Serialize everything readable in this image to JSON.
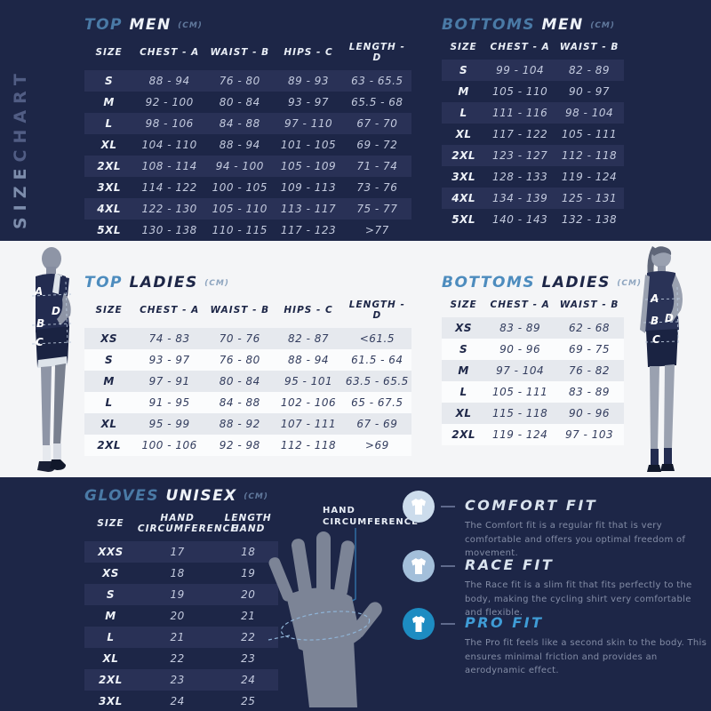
{
  "brand": {
    "vertical_title_part1": "SIZE",
    "vertical_title_part2": "CHART"
  },
  "colors": {
    "background": "#1d2647",
    "light_band": "#f4f5f7",
    "accent_blue": "#4d8cbe",
    "row_dark": "#293156",
    "row_light": "#e6e9ee",
    "pro_blue": "#2f96d0"
  },
  "tables": {
    "top_men": {
      "title": {
        "word1": "TOP",
        "word2": "MEN",
        "unit": "(CM)"
      },
      "headers": [
        "SIZE",
        "CHEST - A",
        "WAIST - B",
        "HIPS - C",
        "LENGTH - D"
      ],
      "rows": [
        [
          "S",
          "88 - 94",
          "76 - 80",
          "89 - 93",
          "63 - 65.5"
        ],
        [
          "M",
          "92 - 100",
          "80 - 84",
          "93 - 97",
          "65.5 - 68"
        ],
        [
          "L",
          "98 - 106",
          "84 - 88",
          "97 - 110",
          "67 - 70"
        ],
        [
          "XL",
          "104 - 110",
          "88 - 94",
          "101 - 105",
          "69 - 72"
        ],
        [
          "2XL",
          "108 - 114",
          "94 - 100",
          "105 - 109",
          "71 - 74"
        ],
        [
          "3XL",
          "114 - 122",
          "100 - 105",
          "109 - 113",
          "73 - 76"
        ],
        [
          "4XL",
          "122 - 130",
          "105 - 110",
          "113 - 117",
          "75 - 77"
        ],
        [
          "5XL",
          "130 - 138",
          "110 - 115",
          "117 - 123",
          ">77"
        ]
      ]
    },
    "bottoms_men": {
      "title": {
        "word1": "BOTTOMS",
        "word2": "MEN",
        "unit": "(CM)"
      },
      "headers": [
        "SIZE",
        "CHEST - A",
        "WAIST - B"
      ],
      "rows": [
        [
          "S",
          "99 - 104",
          "82 - 89"
        ],
        [
          "M",
          "105 - 110",
          "90 - 97"
        ],
        [
          "L",
          "111 - 116",
          "98 - 104"
        ],
        [
          "XL",
          "117 - 122",
          "105 - 111"
        ],
        [
          "2XL",
          "123 - 127",
          "112 - 118"
        ],
        [
          "3XL",
          "128 - 133",
          "119 - 124"
        ],
        [
          "4XL",
          "134 - 139",
          "125 - 131"
        ],
        [
          "5XL",
          "140 - 143",
          "132 - 138"
        ]
      ]
    },
    "top_ladies": {
      "title": {
        "word1": "TOP",
        "word2": "LADIES",
        "unit": "(CM)"
      },
      "headers": [
        "SIZE",
        "CHEST - A",
        "WAIST - B",
        "HIPS - C",
        "LENGTH - D"
      ],
      "rows": [
        [
          "XS",
          "74 - 83",
          "70 - 76",
          "82 - 87",
          "<61.5"
        ],
        [
          "S",
          "93 - 97",
          "76 - 80",
          "88 - 94",
          "61.5 - 64"
        ],
        [
          "M",
          "97 - 91",
          "80 - 84",
          "95 - 101",
          "63.5 - 65.5"
        ],
        [
          "L",
          "91 - 95",
          "84 - 88",
          "102 - 106",
          "65 - 67.5"
        ],
        [
          "XL",
          "95 - 99",
          "88 - 92",
          "107 - 111",
          "67 - 69"
        ],
        [
          "2XL",
          "100 - 106",
          "92 - 98",
          "112 - 118",
          ">69"
        ]
      ]
    },
    "bottoms_ladies": {
      "title": {
        "word1": "BOTTOMS",
        "word2": "LADIES",
        "unit": "(CM)"
      },
      "headers": [
        "SIZE",
        "CHEST - A",
        "WAIST - B"
      ],
      "rows": [
        [
          "XS",
          "83 - 89",
          "62 - 68"
        ],
        [
          "S",
          "90 - 96",
          "69 - 75"
        ],
        [
          "M",
          "97 - 104",
          "76 - 82"
        ],
        [
          "L",
          "105 - 111",
          "83 - 89"
        ],
        [
          "XL",
          "115 - 118",
          "90 - 96"
        ],
        [
          "2XL",
          "119 - 124",
          "97 - 103"
        ]
      ]
    },
    "gloves": {
      "title": {
        "word1": "GLOVES",
        "word2": "UNISEX",
        "unit": "(CM)"
      },
      "headers": [
        "SIZE",
        "HAND\nCIRCUMFERENCE",
        "LENGTH\nHAND"
      ],
      "rows": [
        [
          "XXS",
          "17",
          "18"
        ],
        [
          "XS",
          "18",
          "19"
        ],
        [
          "S",
          "19",
          "20"
        ],
        [
          "M",
          "20",
          "21"
        ],
        [
          "L",
          "21",
          "22"
        ],
        [
          "XL",
          "22",
          "23"
        ],
        [
          "2XL",
          "23",
          "24"
        ],
        [
          "3XL",
          "24",
          "25"
        ]
      ]
    }
  },
  "figures": {
    "men": {
      "labels": {
        "a": "A",
        "d": "D",
        "b": "B",
        "c": "C"
      }
    },
    "women": {
      "labels": {
        "a": "A",
        "b": "B",
        "d": "D",
        "c": "C"
      }
    }
  },
  "gloves_illustration": {
    "label": "HAND CIRCUMFERENCE"
  },
  "fits": [
    {
      "title": "COMFORT FIT",
      "description": "The Comfort fit is a regular fit that is very comfortable and offers you optimal freedom of movement.",
      "icon_bg": "#ccdcec",
      "title_color": "#d9e3ee"
    },
    {
      "title": "RACE FIT",
      "description": "The Race fit is a slim fit that fits perfectly to the body, making the cycling shirt very comfortable and flexible.",
      "icon_bg": "#a3bfda",
      "title_color": "#d9e3ee"
    },
    {
      "title": "PRO FIT",
      "description": "The Pro fit feels like a second skin to the body. This ensures minimal friction and provides an aerodynamic effect.",
      "icon_bg": "#1d8cc2",
      "title_color": "#3f9cd6"
    }
  ]
}
